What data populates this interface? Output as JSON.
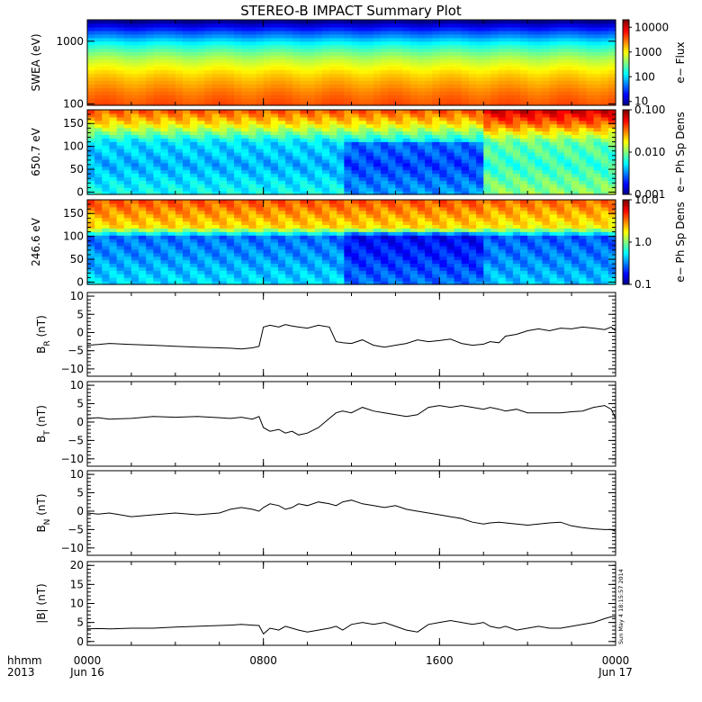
{
  "title": "STEREO-B IMPACT Summary Plot",
  "time_axis": {
    "row1_label": "hhmm",
    "row2_label": "2013",
    "ticks": [
      {
        "hour": 0,
        "top": "0000",
        "bottom": "Jun 16"
      },
      {
        "hour": 8,
        "top": "0800",
        "bottom": ""
      },
      {
        "hour": 16,
        "top": "1600",
        "bottom": ""
      },
      {
        "hour": 24,
        "top": "0000",
        "bottom": "Jun 17"
      }
    ]
  },
  "timestamp": "Sun May  4 18:15:57 2014",
  "colors": {
    "line": "#000000",
    "axis": "#000000",
    "background": "#ffffff"
  },
  "chart_data": [
    {
      "type": "heatmap",
      "ylabel": "SWEA (eV)",
      "yscale": "log",
      "ylim": [
        95,
        2200
      ],
      "yticks": [
        {
          "v": 100,
          "label": "100"
        },
        {
          "v": 1000,
          "label": "1000"
        }
      ],
      "colorbar": {
        "label": "e− Flux",
        "scale": "log",
        "range": [
          7,
          20000
        ],
        "ticks": [
          {
            "v": 10,
            "label": "10"
          },
          {
            "v": 100,
            "label": "100"
          },
          {
            "v": 1000,
            "label": "1000"
          },
          {
            "v": 10000,
            "label": "10000"
          }
        ]
      },
      "profile_by_energy": [
        [
          100,
          4000
        ],
        [
          200,
          2200
        ],
        [
          400,
          900
        ],
        [
          700,
          300
        ],
        [
          1200,
          60
        ],
        [
          1700,
          18
        ],
        [
          2100,
          8
        ]
      ]
    },
    {
      "type": "heatmap",
      "ylabel": "650.7 eV",
      "ylim": [
        -5,
        180
      ],
      "yticks": [
        {
          "v": 0,
          "label": "0"
        },
        {
          "v": 50,
          "label": "50"
        },
        {
          "v": 100,
          "label": "100"
        },
        {
          "v": 150,
          "label": "150"
        }
      ],
      "colorbar": {
        "label": "e− Ph Sp Dens",
        "scale": "log",
        "range": [
          0.001,
          0.1
        ],
        "ticks": [
          {
            "v": 0.001,
            "label": "0.001"
          },
          {
            "v": 0.01,
            "label": "0.010"
          },
          {
            "v": 0.1,
            "label": "0.100"
          }
        ]
      },
      "profile_by_pitch_angle": [
        [
          0,
          0.006
        ],
        [
          60,
          0.004
        ],
        [
          110,
          0.005
        ],
        [
          150,
          0.02
        ],
        [
          180,
          0.04
        ]
      ]
    },
    {
      "type": "heatmap",
      "ylabel": "246.6 eV",
      "ylim": [
        -5,
        180
      ],
      "yticks": [
        {
          "v": 0,
          "label": "0"
        },
        {
          "v": 50,
          "label": "50"
        },
        {
          "v": 100,
          "label": "100"
        },
        {
          "v": 150,
          "label": "150"
        }
      ],
      "colorbar": {
        "label": "e− Ph Sp Dens",
        "scale": "log",
        "range": [
          0.1,
          10
        ],
        "ticks": [
          {
            "v": 0.1,
            "label": "0.1"
          },
          {
            "v": 1,
            "label": "1.0"
          },
          {
            "v": 10,
            "label": "10.0"
          }
        ]
      },
      "profile_by_pitch_angle": [
        [
          0,
          0.5
        ],
        [
          60,
          0.35
        ],
        [
          100,
          0.3
        ],
        [
          120,
          2.0
        ],
        [
          180,
          4.0
        ]
      ]
    },
    {
      "type": "line",
      "ylabel_main": "B",
      "ylabel_sub": "R",
      "ylabel_unit": " (nT)",
      "ylim": [
        -12,
        11
      ],
      "yticks": [
        {
          "v": -10,
          "label": "−10"
        },
        {
          "v": -5,
          "label": "−5"
        },
        {
          "v": 0,
          "label": "0"
        },
        {
          "v": 5,
          "label": "5"
        },
        {
          "v": 10,
          "label": "10"
        }
      ],
      "x_hours": [
        0,
        0.5,
        1,
        2,
        3,
        4,
        5,
        6,
        6.5,
        7,
        7.5,
        7.8,
        8.0,
        8.3,
        8.7,
        9.0,
        9.3,
        9.6,
        10.0,
        10.5,
        11.0,
        11.3,
        11.6,
        12.0,
        12.5,
        13.0,
        13.5,
        14.0,
        14.5,
        15.0,
        15.5,
        16.0,
        16.5,
        17.0,
        17.5,
        18.0,
        18.3,
        18.7,
        19.0,
        19.5,
        20.0,
        20.5,
        21.0,
        21.5,
        22.0,
        22.5,
        23.0,
        23.5,
        23.8,
        24
      ],
      "values": [
        -3.5,
        -3.3,
        -3.0,
        -3.3,
        -3.5,
        -3.8,
        -4.0,
        -4.2,
        -4.3,
        -4.5,
        -4.2,
        -3.8,
        1.5,
        2.0,
        1.5,
        2.2,
        1.8,
        1.5,
        1.2,
        2.0,
        1.5,
        -2.5,
        -2.8,
        -3.0,
        -2.0,
        -3.5,
        -4.0,
        -3.5,
        -3.0,
        -2.0,
        -2.5,
        -2.2,
        -1.8,
        -3.0,
        -3.5,
        -3.2,
        -2.5,
        -2.8,
        -1.0,
        -0.5,
        0.5,
        1.0,
        0.5,
        1.2,
        1.0,
        1.5,
        1.2,
        0.8,
        1.5,
        0.5
      ]
    },
    {
      "type": "line",
      "ylabel_main": "B",
      "ylabel_sub": "T",
      "ylabel_unit": " (nT)",
      "ylim": [
        -12,
        11
      ],
      "yticks": [
        {
          "v": -10,
          "label": "−10"
        },
        {
          "v": -5,
          "label": "−5"
        },
        {
          "v": 0,
          "label": "0"
        },
        {
          "v": 5,
          "label": "5"
        },
        {
          "v": 10,
          "label": "10"
        }
      ],
      "x_hours": [
        0,
        0.5,
        1,
        2,
        3,
        4,
        5,
        6,
        6.5,
        7,
        7.5,
        7.8,
        8.0,
        8.3,
        8.7,
        9.0,
        9.3,
        9.6,
        10.0,
        10.5,
        11.0,
        11.3,
        11.6,
        12.0,
        12.5,
        13.0,
        13.5,
        14.0,
        14.5,
        15.0,
        15.5,
        16.0,
        16.5,
        17.0,
        17.5,
        18.0,
        18.3,
        18.7,
        19.0,
        19.5,
        20.0,
        20.5,
        21.0,
        21.5,
        22.0,
        22.5,
        23.0,
        23.5,
        23.8,
        24
      ],
      "values": [
        1.0,
        1.2,
        0.8,
        1.0,
        1.5,
        1.3,
        1.5,
        1.2,
        1.0,
        1.3,
        0.8,
        1.5,
        -1.5,
        -2.5,
        -2.0,
        -3.0,
        -2.5,
        -3.5,
        -3.0,
        -1.5,
        1.0,
        2.5,
        3.0,
        2.5,
        4.0,
        3.0,
        2.5,
        2.0,
        1.5,
        2.0,
        4.0,
        4.5,
        4.0,
        4.5,
        4.0,
        3.5,
        4.0,
        3.5,
        3.0,
        3.5,
        2.5,
        2.5,
        2.5,
        2.5,
        2.8,
        3.0,
        4.0,
        4.5,
        3.5,
        1.0
      ]
    },
    {
      "type": "line",
      "ylabel_main": "B",
      "ylabel_sub": "N",
      "ylabel_unit": " (nT)",
      "ylim": [
        -12,
        11
      ],
      "yticks": [
        {
          "v": -10,
          "label": "−10"
        },
        {
          "v": -5,
          "label": "−5"
        },
        {
          "v": 0,
          "label": "0"
        },
        {
          "v": 5,
          "label": "5"
        },
        {
          "v": 10,
          "label": "10"
        }
      ],
      "x_hours": [
        0,
        0.5,
        1,
        2,
        3,
        4,
        5,
        6,
        6.5,
        7,
        7.5,
        7.8,
        8.0,
        8.3,
        8.7,
        9.0,
        9.3,
        9.6,
        10.0,
        10.5,
        11.0,
        11.3,
        11.6,
        12.0,
        12.5,
        13.0,
        13.5,
        14.0,
        14.5,
        15.0,
        15.5,
        16.0,
        16.5,
        17.0,
        17.5,
        18.0,
        18.3,
        18.7,
        19.0,
        19.5,
        20.0,
        20.5,
        21.0,
        21.5,
        22.0,
        22.5,
        23.0,
        23.5,
        23.8,
        24
      ],
      "values": [
        -0.5,
        -0.8,
        -0.5,
        -1.5,
        -1.0,
        -0.5,
        -1.0,
        -0.5,
        0.5,
        1.0,
        0.5,
        0.0,
        1.0,
        2.0,
        1.5,
        0.5,
        1.0,
        2.0,
        1.5,
        2.5,
        2.0,
        1.5,
        2.5,
        3.0,
        2.0,
        1.5,
        1.0,
        1.5,
        0.5,
        0.0,
        -0.5,
        -1.0,
        -1.5,
        -2.0,
        -3.0,
        -3.5,
        -3.2,
        -3.0,
        -3.2,
        -3.5,
        -3.8,
        -3.5,
        -3.2,
        -3.0,
        -4.0,
        -4.5,
        -4.8,
        -5.0,
        -5.0,
        -5.5
      ]
    },
    {
      "type": "line",
      "ylabel_main": "|B|",
      "ylabel_sub": "",
      "ylabel_unit": " (nT)",
      "ylim": [
        -1,
        21
      ],
      "yticks": [
        {
          "v": 0,
          "label": "0"
        },
        {
          "v": 5,
          "label": "5"
        },
        {
          "v": 10,
          "label": "10"
        },
        {
          "v": 15,
          "label": "15"
        },
        {
          "v": 20,
          "label": "20"
        }
      ],
      "x_hours": [
        0,
        0.5,
        1,
        2,
        3,
        4,
        5,
        6,
        6.5,
        7,
        7.5,
        7.8,
        8.0,
        8.3,
        8.7,
        9.0,
        9.3,
        9.6,
        10.0,
        10.5,
        11.0,
        11.3,
        11.6,
        12.0,
        12.5,
        13.0,
        13.5,
        14.0,
        14.5,
        15.0,
        15.5,
        16.0,
        16.5,
        17.0,
        17.5,
        18.0,
        18.3,
        18.7,
        19.0,
        19.5,
        20.0,
        20.5,
        21.0,
        21.5,
        22.0,
        22.5,
        23.0,
        23.5,
        23.8,
        24
      ],
      "values": [
        3.3,
        3.4,
        3.3,
        3.5,
        3.5,
        3.8,
        4.0,
        4.2,
        4.3,
        4.5,
        4.3,
        4.2,
        2.0,
        3.5,
        3.0,
        4.0,
        3.5,
        3.0,
        2.5,
        3.0,
        3.5,
        4.0,
        3.0,
        4.5,
        5.0,
        4.5,
        5.0,
        4.0,
        3.0,
        2.5,
        4.5,
        5.0,
        5.5,
        5.0,
        4.5,
        5.0,
        4.0,
        3.5,
        4.0,
        3.0,
        3.5,
        4.0,
        3.5,
        3.5,
        4.0,
        4.5,
        5.0,
        6.0,
        6.5,
        6.5
      ]
    }
  ]
}
